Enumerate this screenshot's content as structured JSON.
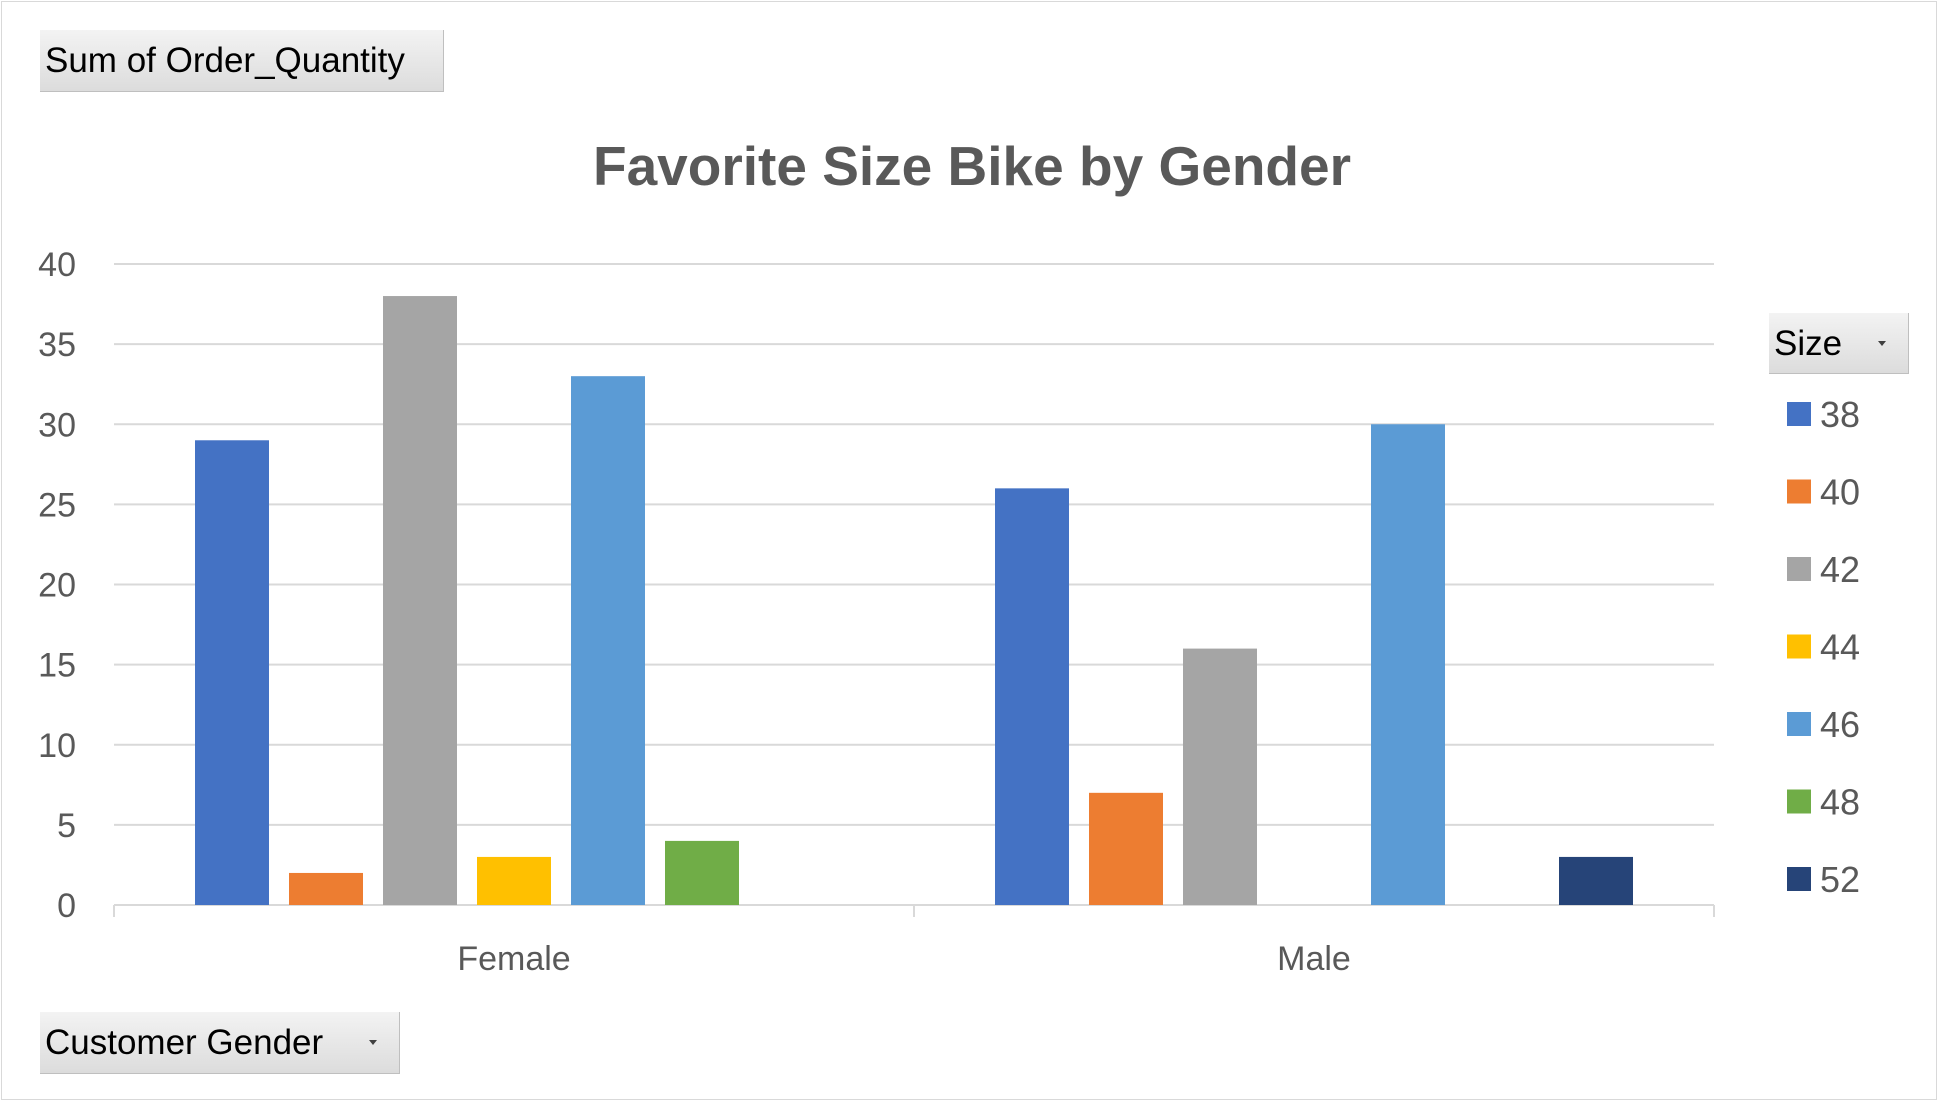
{
  "field_buttons": {
    "values_field": "Sum of Order_Quantity",
    "axis_field": "Customer Gender",
    "legend_field": "Size"
  },
  "colors": {
    "38": "#4472c4",
    "40": "#ed7d31",
    "42": "#a5a5a5",
    "44": "#ffc000",
    "46": "#5b9bd5",
    "48": "#70ad47",
    "52": "#264478"
  },
  "chart_data": {
    "type": "bar",
    "title": "Favorite Size Bike by Gender",
    "xlabel": "",
    "ylabel": "",
    "categories": [
      "Female",
      "Male"
    ],
    "ylim": [
      0,
      40
    ],
    "yticks": [
      0,
      5,
      10,
      15,
      20,
      25,
      30,
      35,
      40
    ],
    "grid": true,
    "legend_position": "right",
    "series": [
      {
        "name": "38",
        "values": [
          29,
          26
        ]
      },
      {
        "name": "40",
        "values": [
          2,
          7
        ]
      },
      {
        "name": "42",
        "values": [
          38,
          16
        ]
      },
      {
        "name": "44",
        "values": [
          3,
          null
        ]
      },
      {
        "name": "46",
        "values": [
          33,
          30
        ]
      },
      {
        "name": "48",
        "values": [
          4,
          null
        ]
      },
      {
        "name": "52",
        "values": [
          null,
          3
        ]
      }
    ]
  }
}
